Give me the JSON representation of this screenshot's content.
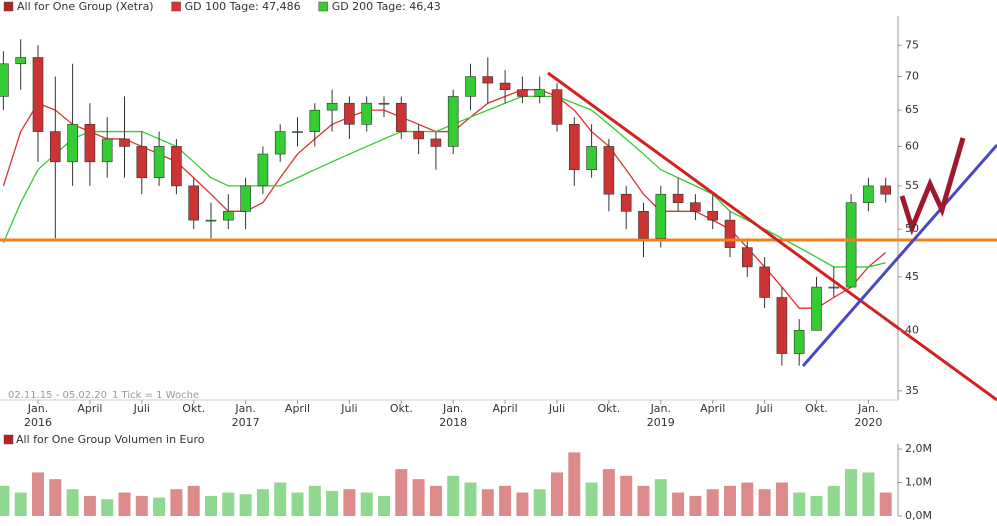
{
  "chart_data": [
    {
      "type": "candlestick",
      "x": [
        "2015-11",
        "2015-12",
        "2016-01",
        "2016-02",
        "2016-03",
        "2016-04",
        "2016-05",
        "2016-06",
        "2016-07",
        "2016-08",
        "2016-09",
        "2016-10",
        "2016-11",
        "2016-12",
        "2017-01",
        "2017-02",
        "2017-03",
        "2017-04",
        "2017-05",
        "2017-06",
        "2017-07",
        "2017-08",
        "2017-09",
        "2017-10",
        "2017-11",
        "2017-12",
        "2018-01",
        "2018-02",
        "2018-03",
        "2018-04",
        "2018-05",
        "2018-06",
        "2018-07",
        "2018-08",
        "2018-09",
        "2018-10",
        "2018-11",
        "2018-12",
        "2019-01",
        "2019-02",
        "2019-03",
        "2019-04",
        "2019-05",
        "2019-06",
        "2019-07",
        "2019-08",
        "2019-09",
        "2019-10",
        "2019-11",
        "2019-12",
        "2020-01",
        "2020-02"
      ],
      "series": [
        {
          "name": "All for One Group (Xetra)",
          "color": "#b22222",
          "up_color": "#33cc33",
          "down_color": "#cc3333",
          "open": [
            67,
            72,
            73,
            62,
            58,
            63,
            58,
            61,
            60,
            56,
            60,
            55,
            51,
            51,
            52,
            55,
            59,
            62,
            62,
            65,
            66,
            63,
            66,
            66,
            62,
            61,
            60,
            67,
            70,
            69,
            68,
            67,
            68,
            63,
            57,
            60,
            54,
            52,
            49,
            54,
            53,
            52,
            51,
            48,
            46,
            43,
            38,
            40,
            44,
            44,
            53,
            55
          ],
          "high": [
            74,
            76,
            75,
            70,
            72,
            66,
            64,
            67,
            62,
            62,
            61,
            56,
            53,
            54,
            56,
            60,
            63,
            64,
            66,
            68,
            67,
            67,
            67,
            67,
            63,
            62,
            68,
            72,
            73,
            71,
            70,
            70,
            69,
            64,
            63,
            61,
            55,
            53,
            55,
            56,
            54,
            54,
            52,
            49,
            47,
            44,
            41,
            45,
            46,
            54,
            56,
            56
          ],
          "low": [
            65,
            68,
            58,
            49,
            55,
            55,
            56,
            56,
            54,
            55,
            54,
            50,
            49,
            50,
            50,
            54,
            58,
            60,
            60,
            62,
            61,
            62,
            64,
            61,
            59,
            57,
            59,
            65,
            66,
            66,
            66,
            66,
            62,
            55,
            56,
            52,
            50,
            47,
            48,
            52,
            51,
            50,
            47,
            45,
            42,
            37,
            37,
            40,
            43,
            44,
            52,
            53
          ],
          "close": [
            72,
            73,
            62,
            58,
            63,
            58,
            61,
            60,
            56,
            60,
            55,
            51,
            51,
            52,
            55,
            59,
            62,
            62,
            65,
            66,
            63,
            66,
            66,
            62,
            61,
            60,
            67,
            70,
            69,
            68,
            67,
            68,
            63,
            57,
            60,
            54,
            52,
            49,
            54,
            53,
            52,
            51,
            48,
            46,
            43,
            38,
            40,
            44,
            44,
            53,
            55,
            54
          ]
        },
        {
          "name": "GD 100 Tage: 47,486",
          "color": "#e03030",
          "values": [
            55,
            62,
            66,
            65,
            63,
            62,
            61,
            61,
            60,
            59,
            58,
            56,
            54,
            52,
            52,
            53,
            56,
            59,
            61,
            63,
            64,
            65,
            65,
            64,
            63,
            62,
            62,
            64,
            66,
            67,
            68,
            68,
            67,
            65,
            62,
            60,
            57,
            54,
            52,
            52,
            52,
            51,
            50,
            48,
            46,
            44,
            42,
            42,
            43,
            44,
            46,
            47.486
          ]
        },
        {
          "name": "GD 200 Tage: 46,43",
          "color": "#33cc33",
          "values": [
            48.5,
            53,
            57,
            59,
            61,
            62,
            62,
            62,
            62,
            61,
            60,
            58,
            56,
            55,
            55,
            55,
            55,
            56,
            57,
            58,
            59,
            60,
            61,
            62,
            62,
            62,
            63,
            64,
            65,
            66,
            67,
            67,
            67,
            66,
            65,
            63,
            61,
            59,
            57,
            56,
            55,
            54,
            52,
            51,
            50,
            49,
            48,
            47,
            46,
            46,
            46,
            46.43
          ]
        }
      ],
      "ylim": [
        34.3,
        80
      ],
      "log_scale": true,
      "yticks": [
        35,
        40,
        45,
        50,
        55,
        60,
        65,
        70,
        75
      ],
      "xticks": [
        {
          "value": "2016-01",
          "label": "Jan."
        },
        {
          "value": "2016-04",
          "label": "April"
        },
        {
          "value": "2016-07",
          "label": "Juli"
        },
        {
          "value": "2016-10",
          "label": "Okt."
        },
        {
          "value": "2017-01",
          "label": "Jan."
        },
        {
          "value": "2017-04",
          "label": "April"
        },
        {
          "value": "2017-07",
          "label": "Juli"
        },
        {
          "value": "2017-10",
          "label": "Okt."
        },
        {
          "value": "2018-01",
          "label": "Jan."
        },
        {
          "value": "2018-04",
          "label": "April"
        },
        {
          "value": "2018-07",
          "label": "Juli"
        },
        {
          "value": "2018-10",
          "label": "Okt."
        },
        {
          "value": "2019-01",
          "label": "Jan."
        },
        {
          "value": "2019-04",
          "label": "April"
        },
        {
          "value": "2019-07",
          "label": "Juli"
        },
        {
          "value": "2019-10",
          "label": "Okt."
        },
        {
          "value": "2020-01",
          "label": "Jan."
        }
      ],
      "xtick_years": [
        {
          "value": "2016-01",
          "label": "2016"
        },
        {
          "value": "2017-01",
          "label": "2017"
        },
        {
          "value": "2018-01",
          "label": "2018"
        },
        {
          "value": "2019-01",
          "label": "2019"
        },
        {
          "value": "2020-01",
          "label": "2020"
        }
      ],
      "annotations": [
        "02.11.15 - 05.02.20",
        "1 Tick = 1 Woche"
      ]
    },
    {
      "type": "bar",
      "title": "All for One Group Volumen in Euro",
      "color": "#b22222",
      "up_color": "#8fd88f",
      "down_color": "#dd8a8a",
      "values": [
        900000,
        700000,
        1300000,
        1100000,
        800000,
        600000,
        500000,
        700000,
        600000,
        550000,
        800000,
        900000,
        600000,
        700000,
        650000,
        800000,
        1000000,
        700000,
        900000,
        750000,
        800000,
        700000,
        600000,
        1400000,
        1100000,
        900000,
        1200000,
        1000000,
        800000,
        900000,
        700000,
        800000,
        1300000,
        1900000,
        1000000,
        1400000,
        1200000,
        900000,
        1100000,
        700000,
        600000,
        800000,
        900000,
        1000000,
        800000,
        1000000,
        700000,
        600000,
        900000,
        1400000,
        1300000,
        700000
      ],
      "ylim": [
        0,
        2150000
      ],
      "yticks": [
        {
          "value": 0,
          "label": "0,0M"
        },
        {
          "value": 1000000,
          "label": "1,0M"
        },
        {
          "value": 2000000,
          "label": "2,0M"
        }
      ]
    }
  ]
}
